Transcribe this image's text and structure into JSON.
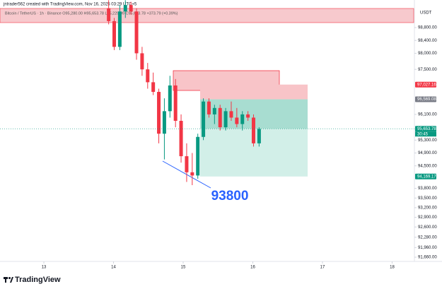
{
  "header": {
    "credit": "jntrader562 created with TradingView.com, Nov 16, 2025 03:29 UTC+5",
    "legend": "Bitcoin / TetherUS · 1h · Binance  O95,280.00 H95,653.78 L95,229.99 C95,653.78 +373.79 (+0.39%)",
    "currency": "USDT",
    "brand": "TradingView"
  },
  "chart_data": {
    "type": "candlestick",
    "annotation": "93800",
    "x": [
      13.93,
      14.01,
      14.09,
      14.17,
      14.25,
      14.33,
      14.41,
      14.49,
      14.57,
      14.65,
      14.73,
      14.81,
      14.89,
      14.97,
      15.05,
      15.13,
      15.21,
      15.29,
      15.37,
      15.45,
      15.53,
      15.61,
      15.69,
      15.77,
      15.85,
      15.93,
      16.01,
      16.09
    ],
    "open": [
      99400,
      99000,
      98200,
      99300,
      99500,
      99300,
      98000,
      97500,
      97100,
      96800,
      95500,
      96200,
      97000,
      95900,
      94800,
      94300,
      94200,
      95400,
      96500,
      96100,
      96300,
      95700,
      96200,
      96000,
      95800,
      96100,
      96000,
      95200
    ],
    "high": [
      99650,
      99100,
      99500,
      99650,
      99600,
      99400,
      98200,
      97700,
      97400,
      96900,
      96600,
      97300,
      97200,
      96100,
      95200,
      94900,
      95500,
      96600,
      96600,
      96400,
      96400,
      96300,
      96500,
      96300,
      96200,
      96200,
      96100,
      95700
    ],
    "low": [
      98900,
      98100,
      98100,
      99100,
      99200,
      97800,
      97300,
      96900,
      96700,
      95200,
      94700,
      96000,
      95700,
      94600,
      94000,
      93900,
      94100,
      95300,
      96000,
      95800,
      95600,
      95600,
      95900,
      95700,
      95600,
      95900,
      95100,
      95100
    ],
    "close": [
      99000,
      98200,
      99300,
      99500,
      99300,
      98000,
      97500,
      97100,
      96800,
      95500,
      96200,
      97000,
      95900,
      94800,
      94300,
      94200,
      95400,
      96500,
      96100,
      96300,
      95700,
      96200,
      96000,
      95800,
      96100,
      96000,
      95200,
      95650
    ],
    "up_color": "#089981",
    "down_color": "#f23645",
    "xlim": [
      12.37,
      18.31
    ],
    "xticks": [
      13,
      14,
      15,
      16,
      17,
      18
    ],
    "ylim": [
      91528,
      99657
    ],
    "yticks": [
      {
        "value": 98800,
        "label": "98,800.00"
      },
      {
        "value": 98400,
        "label": "98,400.00"
      },
      {
        "value": 98000,
        "label": "98,000.00"
      },
      {
        "value": 97500,
        "label": "97,500.00"
      },
      {
        "value": 96100,
        "label": "96,100.00"
      },
      {
        "value": 95300,
        "label": "95,300.00"
      },
      {
        "value": 94900,
        "label": "94,900.00"
      },
      {
        "value": 94500,
        "label": "94,500.00"
      },
      {
        "value": 93800,
        "label": "93,800.00"
      },
      {
        "value": 93500,
        "label": "93,500.00"
      },
      {
        "value": 93200,
        "label": "93,200.00"
      },
      {
        "value": 92900,
        "label": "92,900.00"
      },
      {
        "value": 92600,
        "label": "92,600.00"
      },
      {
        "value": 92280,
        "label": "92,280.00"
      },
      {
        "value": 91960,
        "label": "91,960.00"
      },
      {
        "value": 91660,
        "label": "91,660.00"
      }
    ],
    "price_tags": [
      {
        "value": 97027.16,
        "label": "97,027.16",
        "color": "#f23645"
      },
      {
        "value": 96569.08,
        "label": "96,569.08",
        "color": "#787b86"
      },
      {
        "value": 95653.78,
        "label": "95,653.78",
        "color": "#089981"
      },
      {
        "value": 94169.17,
        "label": "94,169.17",
        "color": "#089981"
      }
    ],
    "countdown": "30:45",
    "grid": false
  }
}
